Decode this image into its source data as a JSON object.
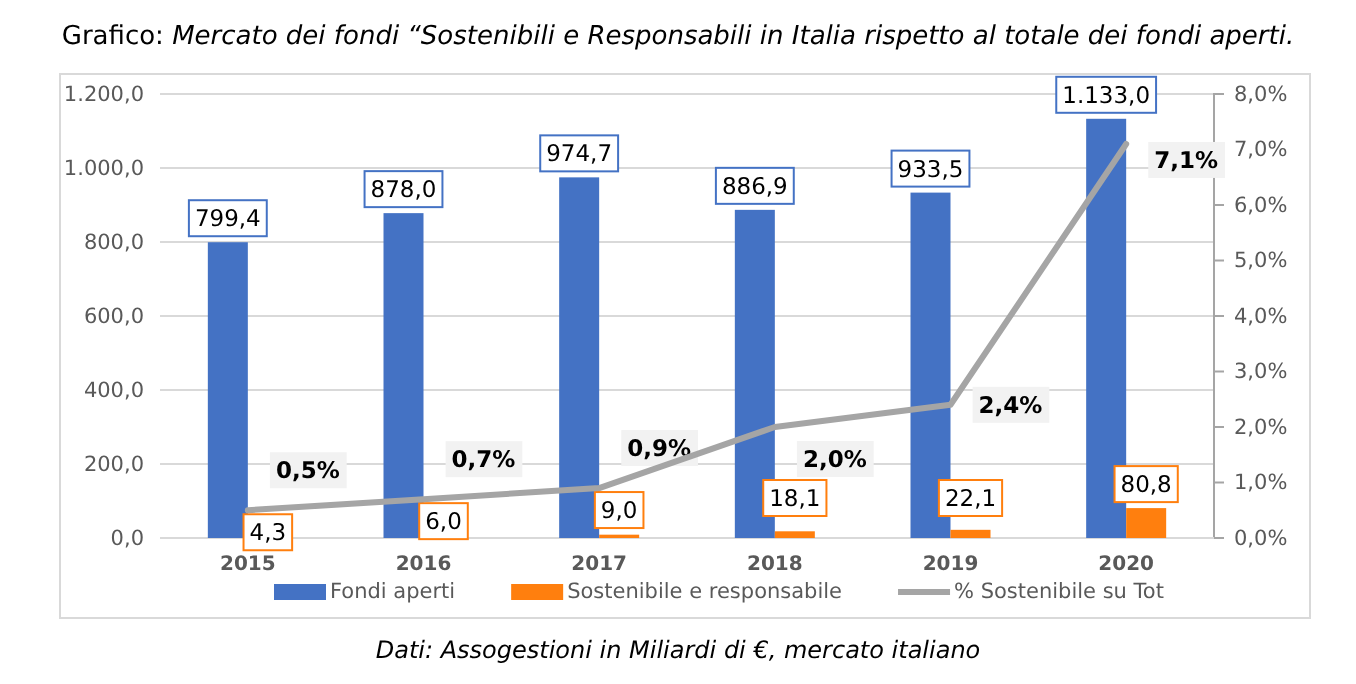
{
  "chart_data": {
    "type": "bar",
    "title": "Grafico: Mercato dei fondi “Sostenibili e Responsabili in Italia rispetto al totale dei fondi aperti.",
    "categories": [
      "2015",
      "2016",
      "2017",
      "2018",
      "2019",
      "2020"
    ],
    "series": [
      {
        "name": "Fondi aperti",
        "color": "#4472c4",
        "values": [
          799.4,
          878.0,
          974.7,
          886.9,
          933.5,
          1133.0
        ],
        "value_labels": [
          "799,4",
          "878,0",
          "974,7",
          "886,9",
          "933,5",
          "1.133,0"
        ]
      },
      {
        "name": "Sostenibile e responsabile",
        "color": "#ff7f0e",
        "values": [
          4.3,
          6.0,
          9.0,
          18.1,
          22.1,
          80.8
        ],
        "value_labels": [
          "4,3",
          "6,0",
          "9,0",
          "18,1",
          "22,1",
          "80,8"
        ]
      },
      {
        "name": "% Sostenibile su Tot",
        "type": "line",
        "axis": "y2",
        "color": "#a5a5a5",
        "values": [
          0.5,
          0.7,
          0.9,
          2.0,
          2.4,
          7.1
        ],
        "value_labels": [
          "0,5%",
          "0,7%",
          "0,9%",
          "2,0%",
          "2,4%",
          "7,1%"
        ]
      }
    ],
    "ylim": [
      0,
      1200
    ],
    "yticks": [
      {
        "value": 0,
        "label": "0,0"
      },
      {
        "value": 200,
        "label": "200,0"
      },
      {
        "value": 400,
        "label": "400,0"
      },
      {
        "value": 600,
        "label": "600,0"
      },
      {
        "value": 800,
        "label": "800,0"
      },
      {
        "value": 1000,
        "label": "1.000,0"
      },
      {
        "value": 1200,
        "label": "1.200,0"
      }
    ],
    "y2lim": [
      0,
      8
    ],
    "y2ticks": [
      {
        "value": 0,
        "label": "0,0%"
      },
      {
        "value": 1,
        "label": "1,0%"
      },
      {
        "value": 2,
        "label": "2,0%"
      },
      {
        "value": 3,
        "label": "3,0%"
      },
      {
        "value": 4,
        "label": "4,0%"
      },
      {
        "value": 5,
        "label": "5,0%"
      },
      {
        "value": 6,
        "label": "6,0%"
      },
      {
        "value": 7,
        "label": "7,0%"
      },
      {
        "value": 8,
        "label": "8,0%"
      }
    ],
    "grid": "y",
    "legend": "bottom",
    "marker": "none",
    "line_style": "solid",
    "annotations": [
      "Dati: Assogestioni in Miliardi di €, mercato italiano"
    ]
  }
}
